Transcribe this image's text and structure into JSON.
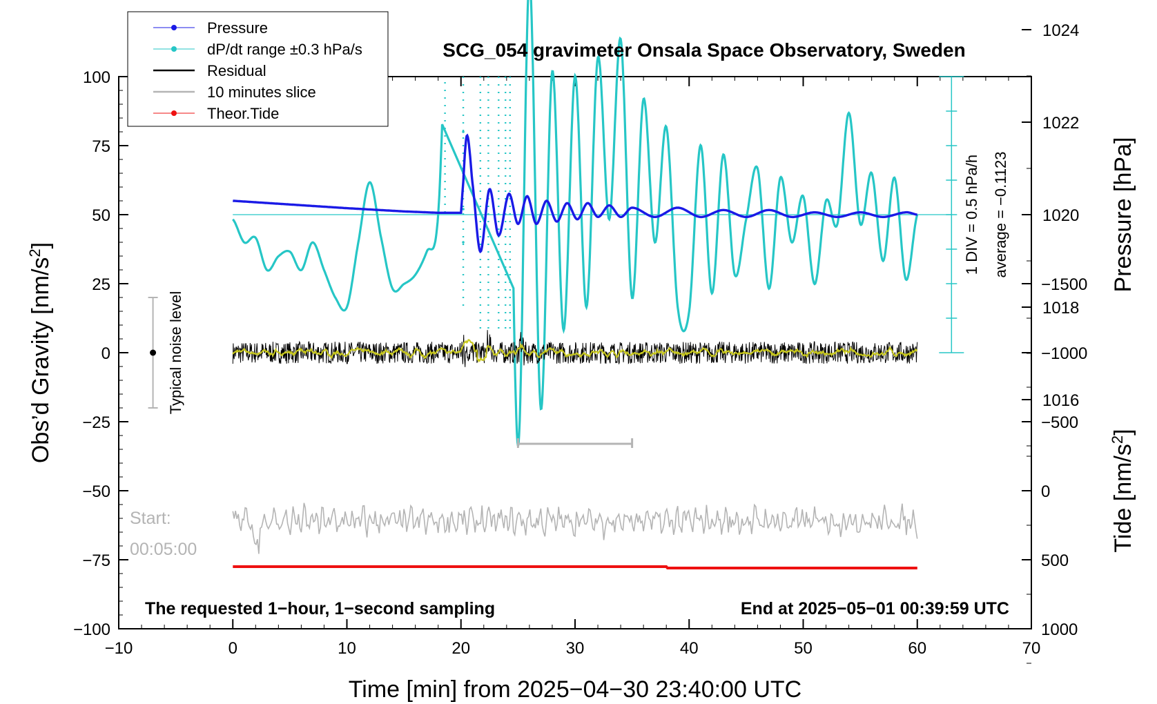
{
  "chart_data": {
    "type": "line",
    "title": "SCG_054 gravimeter Onsala Space Observatory, Sweden",
    "xlabel": "Time [min] from 2025−04−30 23:40:00 UTC",
    "ylabel_left": "Obs’d Gravity [nm/s",
    "ylabel_left_sup": "2",
    "ylabel_left_close": "]",
    "ylabel_right_pressure": "Pressure [hPa]",
    "ylabel_right_tide": "Tide [nm/s",
    "ylabel_right_tide_sup": "2",
    "ylabel_right_tide_close": "]",
    "xlim": [
      -10,
      70
    ],
    "ylim_left": [
      -100,
      100
    ],
    "pressure_range": [
      1014,
      1026
    ],
    "tide_range": [
      -1500,
      1500
    ],
    "x_ticks": [
      "−10",
      "0",
      "10",
      "20",
      "30",
      "40",
      "50",
      "60",
      "70"
    ],
    "y_left_ticks": [
      "−100",
      "−75",
      "−50",
      "−25",
      "0",
      "25",
      "50",
      "75",
      "100"
    ],
    "pressure_ticks": [
      "1016",
      "1018",
      "1020",
      "1022",
      "1024"
    ],
    "tide_ticks": [
      "−1500",
      "−1000",
      "−500",
      "0",
      "500",
      "1000"
    ],
    "grid": false,
    "legend_position": "top-left",
    "legend": [
      {
        "label": "Pressure",
        "color": "#1a1ae6",
        "marker": "dot"
      },
      {
        "label": "dP/dt range ±0.3 hPa/s",
        "color": "#26c6c6",
        "marker": "dot"
      },
      {
        "label": "Residual",
        "color": "#000000",
        "marker": "none"
      },
      {
        "label": "10 minutes slice",
        "color": "#b4b4b4",
        "marker": "none"
      },
      {
        "label": "Theor.Tide",
        "color": "#ee1111",
        "marker": "dot"
      }
    ],
    "series": [
      {
        "name": "Pressure",
        "unit": "hPa",
        "x": [
          0,
          5,
          10,
          15,
          18,
          20,
          20.5,
          21,
          21.7,
          22.5,
          23.3,
          24.2,
          25,
          25.8,
          26.6,
          27.5,
          28.4,
          29.3,
          30.2,
          31.1,
          32,
          33,
          34,
          35,
          37,
          39,
          41,
          43,
          45,
          47,
          49,
          51,
          53,
          55,
          57,
          59,
          60
        ],
        "values": [
          1020.3,
          1020.22,
          1020.14,
          1020.07,
          1020.04,
          1020.04,
          1021.7,
          1020.7,
          1019.2,
          1020.55,
          1019.55,
          1020.45,
          1019.8,
          1020.4,
          1019.8,
          1020.3,
          1019.85,
          1020.25,
          1019.9,
          1020.25,
          1019.95,
          1020.2,
          1019.95,
          1020.15,
          1019.95,
          1020.15,
          1019.95,
          1020.1,
          1019.95,
          1020.1,
          1019.95,
          1020.05,
          1019.95,
          1020.05,
          1019.95,
          1020.05,
          1020.0
        ]
      },
      {
        "name": "dP/dt range ±0.3 hPa/s",
        "unit": "hPa (display)",
        "x": [
          0,
          1,
          2,
          3,
          4,
          5,
          6,
          7,
          8,
          9,
          10,
          11,
          12,
          13,
          14,
          15,
          16,
          17,
          18,
          19,
          20,
          21,
          22,
          23,
          24,
          25,
          26,
          27,
          28,
          29,
          30,
          31,
          32,
          33,
          34,
          35,
          36,
          37,
          38,
          39,
          40,
          41,
          42,
          43,
          44,
          45,
          46,
          47,
          48,
          49,
          50,
          51,
          52,
          53,
          54,
          55,
          56,
          57,
          58,
          59,
          60
        ],
        "values": [
          1019.9,
          1019.4,
          1019.5,
          1018.8,
          1019.1,
          1019.2,
          1018.8,
          1019.4,
          1018.8,
          1018.2,
          1018.0,
          1019.4,
          1020.7,
          1019.5,
          1018.4,
          1018.5,
          1018.7,
          1019.2,
          1020.0,
          1026.0,
          1026.0,
          1026.0,
          1026.0,
          1026.0,
          1026.0,
          1015.0,
          1025.1,
          1015.8,
          1023.1,
          1017.5,
          1023.0,
          1018.0,
          1023.4,
          1019.9,
          1023.8,
          1018.2,
          1022.5,
          1019.4,
          1021.9,
          1018.0,
          1017.9,
          1021.5,
          1018.3,
          1021.3,
          1018.7,
          1019.9,
          1021.0,
          1018.4,
          1020.8,
          1019.4,
          1020.4,
          1018.5,
          1020.3,
          1019.8,
          1022.2,
          1019.8,
          1020.9,
          1019.0,
          1020.8,
          1018.6,
          1020.0
        ]
      },
      {
        "name": "Residual",
        "unit": "nm/s2",
        "x_range": [
          0,
          60
        ],
        "baseline": 0,
        "noise_amplitude": 4,
        "spike_x": [
          20.3,
          22.5,
          25.3
        ],
        "spike_values": [
          10,
          8,
          11
        ]
      },
      {
        "name": "10 minutes slice",
        "unit": "nm/s2 (display)",
        "x_range": [
          0,
          60
        ],
        "baseline": -61,
        "amplitude": 6
      },
      {
        "name": "Theor.Tide",
        "unit": "nm/s2",
        "x": [
          0,
          38,
          38.1,
          60
        ],
        "values": [
          550,
          550,
          560,
          560
        ]
      }
    ],
    "annotations": {
      "noise_label": "Typical noise level",
      "noise_bar": [
        -20,
        20
      ],
      "noise_x": -7,
      "slice_bracket": [
        25,
        35
      ],
      "slice_bracket_level": -33,
      "div_label": "1 DIV = 0.5 hPa/h",
      "average_label": "average = −0.1123",
      "bottom_left": "The requested 1−hour, 1−second sampling",
      "bottom_right": "End at 2025−05−01 00:39:59 UTC",
      "start_label": "Start:",
      "start_time": "00:05:00"
    }
  }
}
